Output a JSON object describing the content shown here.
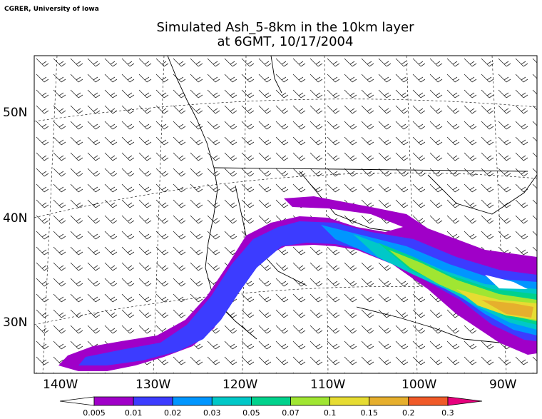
{
  "credit": "CGRER, University of Iowa",
  "title_line1": "Simulated Ash_5-8km in the 10km layer",
  "title_line2": "at 6GMT, 10/17/2004",
  "lat_labels": [
    "50N",
    "40N",
    "30N"
  ],
  "lon_labels": [
    "140W",
    "130W",
    "120W",
    "110W",
    "100W",
    "90W"
  ],
  "colorbar": {
    "labels": [
      "0.005",
      "0.01",
      "0.02",
      "0.03",
      "0.05",
      "0.07",
      "0.1",
      "0.15",
      "0.2",
      "0.3"
    ],
    "colors": [
      "#a000c8",
      "#3c3cff",
      "#0096ff",
      "#00c8c8",
      "#00d28c",
      "#a0e632",
      "#e6dc32",
      "#e6af2d",
      "#f05a28",
      "#fa0000",
      "#e6007d"
    ]
  }
}
